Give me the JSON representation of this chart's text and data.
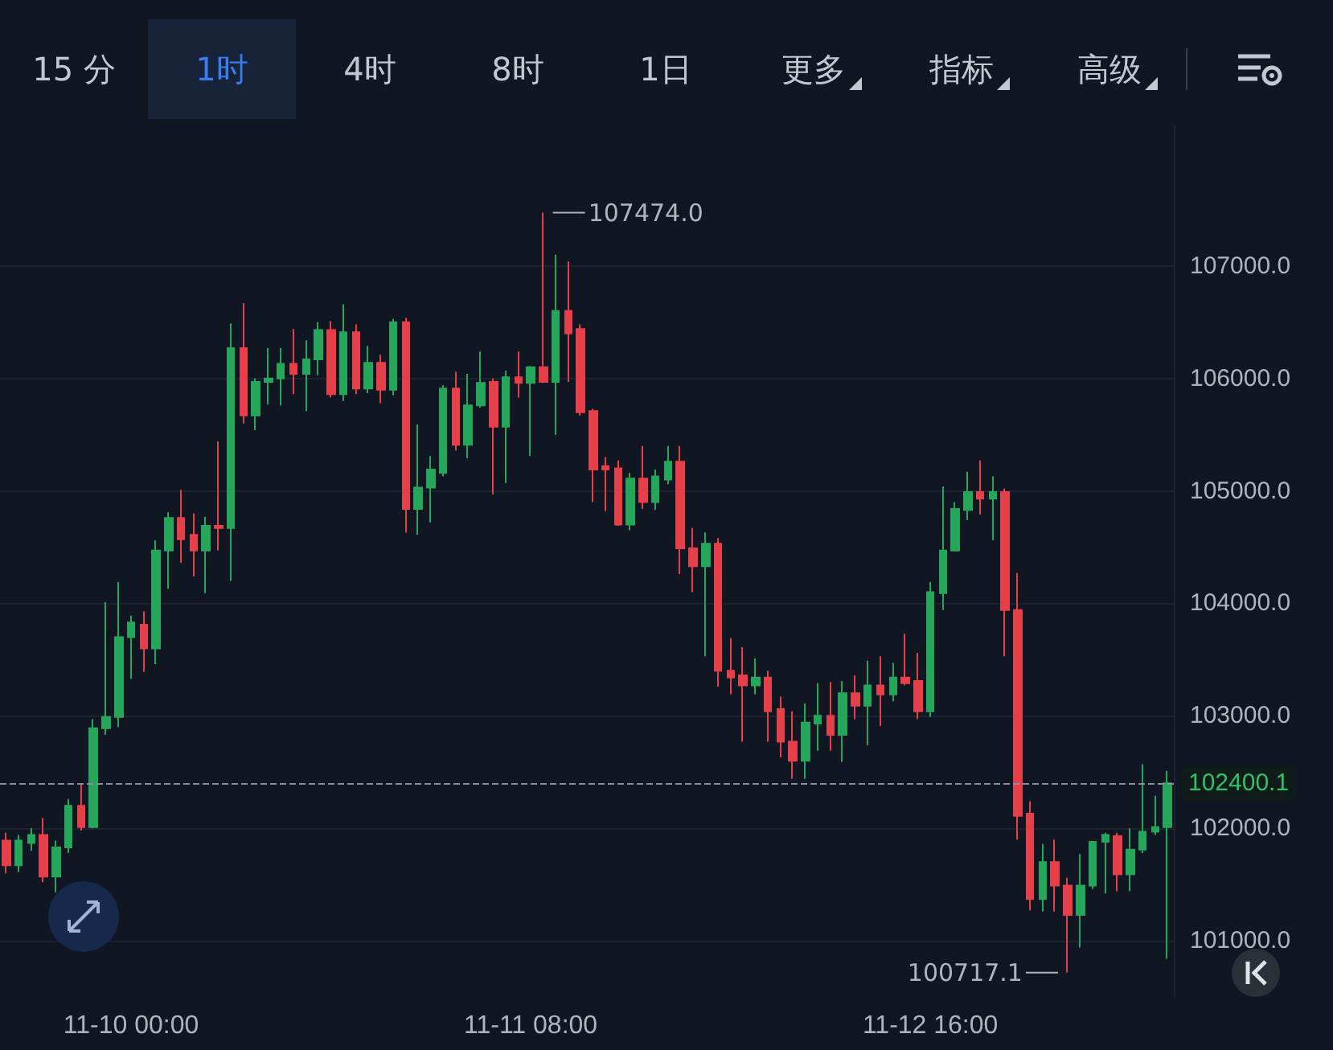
{
  "chart_data": {
    "type": "candlestick",
    "categories": [
      null,
      null,
      null,
      null,
      null,
      null,
      null,
      null,
      null,
      null,
      "11-10 00:00",
      null,
      null,
      null,
      null,
      null,
      null,
      null,
      null,
      null,
      null,
      null,
      null,
      null,
      null,
      null,
      null,
      null,
      null,
      null,
      null,
      null,
      null,
      null,
      null,
      null,
      null,
      null,
      null,
      null,
      null,
      null,
      "11-11 08:00",
      null,
      null,
      null,
      null,
      null,
      null,
      null,
      null,
      null,
      null,
      null,
      null,
      null,
      null,
      null,
      null,
      null,
      null,
      null,
      null,
      null,
      null,
      null,
      null,
      null,
      null,
      null,
      null,
      null,
      null,
      null,
      "11-12 16:00",
      null,
      null,
      null,
      null,
      null,
      null,
      null,
      null,
      null,
      null,
      null,
      null,
      null,
      null,
      null,
      null,
      null,
      null,
      null
    ],
    "ohlc": [
      [
        101890,
        101960,
        101600,
        101670
      ],
      [
        101670,
        101940,
        101610,
        101890
      ],
      [
        101870,
        102000,
        101800,
        101940
      ],
      [
        101940,
        102090,
        101520,
        101570
      ],
      [
        101570,
        101890,
        101430,
        101830
      ],
      [
        101830,
        102260,
        101780,
        102200
      ],
      [
        102200,
        102390,
        101980,
        102010
      ],
      [
        102010,
        102970,
        102000,
        102890
      ],
      [
        102890,
        104010,
        102830,
        102990
      ],
      [
        102990,
        104190,
        102900,
        103700
      ],
      [
        103700,
        103890,
        103330,
        103830
      ],
      [
        103810,
        103930,
        103390,
        103600
      ],
      [
        103600,
        104560,
        103460,
        104470
      ],
      [
        104470,
        104810,
        104130,
        104760
      ],
      [
        104760,
        105010,
        104360,
        104570
      ],
      [
        104610,
        104800,
        104240,
        104470
      ],
      [
        104470,
        104770,
        104090,
        104690
      ],
      [
        104690,
        105440,
        104470,
        104670
      ],
      [
        104670,
        106490,
        104200,
        106270
      ],
      [
        106270,
        106670,
        105600,
        105670
      ],
      [
        105670,
        106000,
        105540,
        105970
      ],
      [
        105970,
        106270,
        105770,
        106000
      ],
      [
        106000,
        106270,
        105760,
        106130
      ],
      [
        106130,
        106440,
        105860,
        106040
      ],
      [
        106040,
        106340,
        105710,
        106170
      ],
      [
        106170,
        106500,
        106030,
        106430
      ],
      [
        106430,
        106510,
        105830,
        105860
      ],
      [
        105860,
        106660,
        105800,
        106410
      ],
      [
        106410,
        106480,
        105860,
        105910
      ],
      [
        105910,
        106290,
        105870,
        106140
      ],
      [
        106140,
        106210,
        105780,
        105900
      ],
      [
        105900,
        106530,
        105850,
        106500
      ],
      [
        106500,
        106540,
        104630,
        104840
      ],
      [
        104840,
        105590,
        104610,
        105030
      ],
      [
        105030,
        105310,
        104720,
        105190
      ],
      [
        105160,
        105940,
        105130,
        105910
      ],
      [
        105910,
        106060,
        105360,
        105410
      ],
      [
        105410,
        106040,
        105290,
        105760
      ],
      [
        105760,
        106240,
        105740,
        105960
      ],
      [
        105970,
        106000,
        104970,
        105570
      ],
      [
        105570,
        106070,
        105070,
        106010
      ],
      [
        106010,
        106240,
        105830,
        105960
      ],
      [
        105960,
        106110,
        105310,
        106100
      ],
      [
        106100,
        107474.0,
        105960,
        105970
      ],
      [
        105970,
        107100,
        105500,
        106600
      ],
      [
        106600,
        107040,
        105970,
        106400
      ],
      [
        106440,
        106480,
        105670,
        105700
      ],
      [
        105710,
        105730,
        104900,
        105190
      ],
      [
        105220,
        105300,
        104820,
        105190
      ],
      [
        105200,
        105270,
        104690,
        104700
      ],
      [
        104700,
        105160,
        104650,
        105110
      ],
      [
        105110,
        105400,
        104840,
        104900
      ],
      [
        104900,
        105190,
        104830,
        105130
      ],
      [
        105100,
        105400,
        105060,
        105260
      ],
      [
        105260,
        105400,
        104260,
        104490
      ],
      [
        104490,
        104670,
        104100,
        104330
      ],
      [
        104330,
        104630,
        103530,
        104530
      ],
      [
        104530,
        104580,
        103260,
        103400
      ],
      [
        103400,
        103690,
        103190,
        103340
      ],
      [
        103360,
        103610,
        102770,
        103270
      ],
      [
        103270,
        103510,
        103190,
        103340
      ],
      [
        103340,
        103400,
        102770,
        103040
      ],
      [
        103060,
        103170,
        102630,
        102770
      ],
      [
        102770,
        103040,
        102440,
        102600
      ],
      [
        102600,
        103110,
        102440,
        102940
      ],
      [
        102930,
        103290,
        102690,
        103000
      ],
      [
        103000,
        103300,
        102690,
        102830
      ],
      [
        102830,
        103310,
        102590,
        103200
      ],
      [
        103200,
        103360,
        102970,
        103090
      ],
      [
        103090,
        103490,
        102740,
        103270
      ],
      [
        103270,
        103530,
        102910,
        103190
      ],
      [
        103190,
        103470,
        103130,
        103340
      ],
      [
        103340,
        103730,
        103270,
        103290
      ],
      [
        103310,
        103560,
        102970,
        103040
      ],
      [
        103040,
        104190,
        102990,
        104100
      ],
      [
        104090,
        105040,
        103940,
        104470
      ],
      [
        104470,
        104900,
        104460,
        104840
      ],
      [
        104830,
        105170,
        104740,
        104990
      ],
      [
        104990,
        105270,
        104790,
        104930
      ],
      [
        104930,
        105130,
        104560,
        104990
      ],
      [
        104990,
        105020,
        103530,
        103940
      ],
      [
        103940,
        104270,
        101900,
        102110
      ],
      [
        102130,
        102240,
        101270,
        101370
      ],
      [
        101370,
        101860,
        101260,
        101700
      ],
      [
        101700,
        101900,
        101260,
        101490
      ],
      [
        101490,
        101560,
        100717.1,
        101230
      ],
      [
        101230,
        101770,
        100940,
        101490
      ],
      [
        101490,
        101880,
        101460,
        101880
      ],
      [
        101880,
        101960,
        101420,
        101940
      ],
      [
        101930,
        101960,
        101440,
        101590
      ],
      [
        101590,
        102000,
        101440,
        101810
      ],
      [
        101810,
        102570,
        101780,
        101970
      ],
      [
        101970,
        102290,
        101940,
        102010
      ],
      [
        102010,
        102510,
        100840,
        102400.1
      ]
    ],
    "colors": [
      "#e5404a",
      "#26a65b",
      "#26a65b",
      "#e5404a",
      "#26a65b",
      "#26a65b",
      "#e5404a",
      "#26a65b",
      "#26a65b",
      "#26a65b",
      "#26a65b",
      "#e5404a",
      "#26a65b",
      "#26a65b",
      "#e5404a",
      "#e5404a",
      "#26a65b",
      "#e5404a",
      "#26a65b",
      "#e5404a",
      "#26a65b",
      "#26a65b",
      "#26a65b",
      "#e5404a",
      "#26a65b",
      "#26a65b",
      "#e5404a",
      "#26a65b",
      "#e5404a",
      "#26a65b",
      "#e5404a",
      "#26a65b",
      "#e5404a",
      "#26a65b",
      "#26a65b",
      "#26a65b",
      "#e5404a",
      "#26a65b",
      "#26a65b",
      "#e5404a",
      "#26a65b",
      "#e5404a",
      "#26a65b",
      "#e5404a",
      "#26a65b",
      "#e5404a",
      "#e5404a",
      "#e5404a",
      "#e5404a",
      "#e5404a",
      "#26a65b",
      "#e5404a",
      "#26a65b",
      "#26a65b",
      "#e5404a",
      "#e5404a",
      "#26a65b",
      "#e5404a",
      "#e5404a",
      "#e5404a",
      "#26a65b",
      "#e5404a",
      "#e5404a",
      "#e5404a",
      "#26a65b",
      "#26a65b",
      "#e5404a",
      "#26a65b",
      "#e5404a",
      "#26a65b",
      "#e5404a",
      "#26a65b",
      "#e5404a",
      "#e5404a",
      "#26a65b",
      "#26a65b",
      "#26a65b",
      "#26a65b",
      "#e5404a",
      "#26a65b",
      "#e5404a",
      "#e5404a",
      "#e5404a",
      "#26a65b",
      "#e5404a",
      "#e5404a",
      "#26a65b",
      "#26a65b",
      "#26a65b",
      "#e5404a",
      "#26a65b",
      "#26a65b",
      "#26a65b",
      "#26a65b"
    ],
    "ylim": [
      100500,
      108250
    ],
    "yticks": [
      {
        "value": 101000,
        "label": "101000.0"
      },
      {
        "value": 102000,
        "label": "102000.0"
      },
      {
        "value": 103000,
        "label": "103000.0"
      },
      {
        "value": 104000,
        "label": "104000.0"
      },
      {
        "value": 105000,
        "label": "105000.0"
      },
      {
        "value": 106000,
        "label": "106000.0"
      },
      {
        "value": 107000,
        "label": "107000.0"
      }
    ],
    "grid": "y",
    "ref_lines": [
      {
        "axis": "y",
        "value": 102400.1,
        "label": "102400.1",
        "color": "#8a9099",
        "line_style": "dashed"
      }
    ],
    "annotations": [
      "15 分",
      "1时",
      "4时",
      "8时",
      "1日",
      "更多",
      "指标",
      "高级",
      "107474.0",
      "100717.1"
    ]
  }
}
